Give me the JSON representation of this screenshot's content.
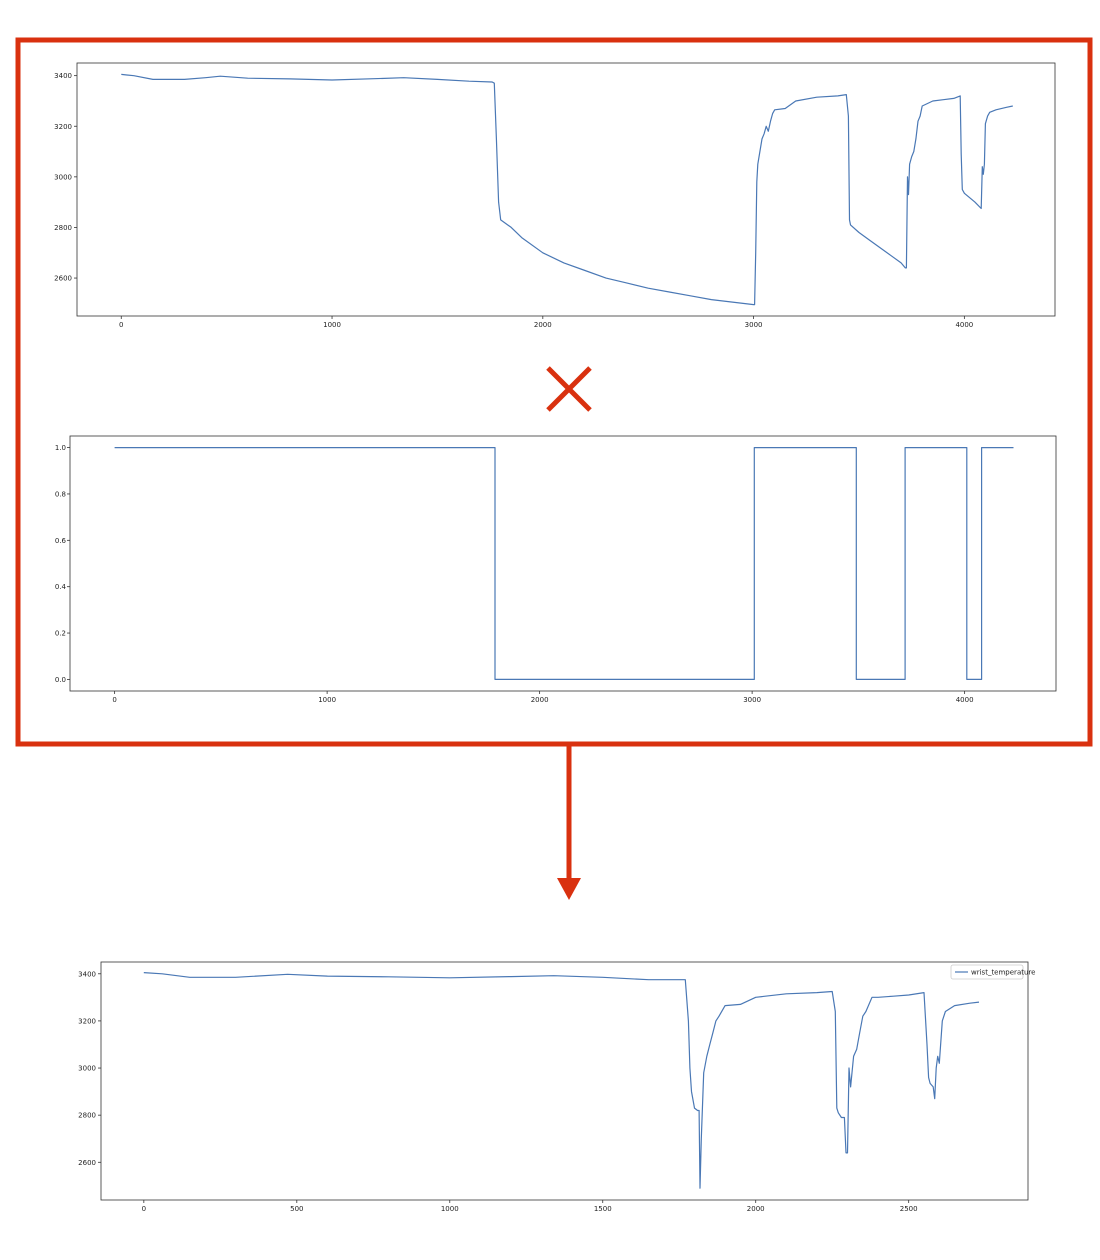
{
  "colors": {
    "series": "#4a78b5",
    "highlight": "#d9310f",
    "axes": "#333333",
    "background": "#ffffff"
  },
  "annotations": {
    "multiply_symbol": "multiply-x-icon",
    "flow_arrow": "down-arrow-icon"
  },
  "chart_data": [
    {
      "type": "line",
      "title": "",
      "xlabel": "",
      "ylabel": "",
      "xlim": [
        -210,
        4430
      ],
      "ylim": [
        2450,
        3450
      ],
      "xticks": [
        0,
        1000,
        2000,
        3000,
        4000
      ],
      "yticks": [
        2600,
        2800,
        3000,
        3200,
        3400
      ],
      "grid": false,
      "legend": "none",
      "series": [
        {
          "x": [
            0,
            60,
            150,
            300,
            400,
            470,
            600,
            800,
            1000,
            1200,
            1340,
            1500,
            1650,
            1760,
            1770,
            1780,
            1790,
            1800,
            1850,
            1900,
            2000,
            2100,
            2200,
            2300,
            2400,
            2500,
            2600,
            2700,
            2800,
            2900,
            3000,
            3005,
            3010,
            3015,
            3020,
            3030,
            3040,
            3050,
            3060,
            3070,
            3080,
            3090,
            3100,
            3150,
            3200,
            3300,
            3400,
            3440,
            3450,
            3455,
            3460,
            3500,
            3550,
            3600,
            3650,
            3700,
            3720,
            3725,
            3730,
            3735,
            3740,
            3750,
            3760,
            3770,
            3780,
            3790,
            3800,
            3850,
            3900,
            3950,
            3980,
            3985,
            3990,
            4000,
            4050,
            4080,
            4085,
            4090,
            4095,
            4100,
            4110,
            4120,
            4150,
            4200,
            4230
          ],
          "y": [
            3405,
            3400,
            3385,
            3385,
            3392,
            3398,
            3390,
            3387,
            3383,
            3388,
            3392,
            3385,
            3378,
            3375,
            3370,
            3150,
            2900,
            2830,
            2800,
            2760,
            2700,
            2660,
            2630,
            2600,
            2580,
            2560,
            2545,
            2530,
            2515,
            2505,
            2495,
            2495,
            2700,
            2980,
            3050,
            3100,
            3150,
            3170,
            3200,
            3180,
            3220,
            3250,
            3265,
            3270,
            3300,
            3315,
            3320,
            3325,
            3240,
            2830,
            2810,
            2780,
            2750,
            2720,
            2690,
            2660,
            2640,
            2640,
            3000,
            2930,
            3050,
            3080,
            3100,
            3150,
            3220,
            3240,
            3280,
            3300,
            3305,
            3310,
            3320,
            3090,
            2950,
            2935,
            2900,
            2875,
            3040,
            3010,
            3050,
            3210,
            3240,
            3255,
            3265,
            3275,
            3280
          ],
          "color": "#4a78b5"
        }
      ]
    },
    {
      "type": "line",
      "title": "",
      "xlabel": "",
      "ylabel": "",
      "xlim": [
        -210,
        4430
      ],
      "ylim": [
        -0.05,
        1.05
      ],
      "xticks": [
        0,
        1000,
        2000,
        3000,
        4000
      ],
      "yticks": [
        0.0,
        0.2,
        0.4,
        0.6,
        0.8,
        1.0
      ],
      "ytick_labels": [
        "0.0",
        "0.2",
        "0.4",
        "0.6",
        "0.8",
        "1.0"
      ],
      "grid": false,
      "legend": "none",
      "series": [
        {
          "x": [
            0,
            1790,
            1790,
            3010,
            3010,
            3490,
            3490,
            3720,
            3720,
            4010,
            4010,
            4080,
            4080,
            4230
          ],
          "y": [
            1,
            1,
            0,
            0,
            1,
            1,
            0,
            0,
            1,
            1,
            0,
            0,
            1,
            1
          ],
          "color": "#4a78b5"
        }
      ]
    },
    {
      "type": "line",
      "title": "",
      "xlabel": "",
      "ylabel": "",
      "xlim": [
        -140,
        2890
      ],
      "ylim": [
        2440,
        3450
      ],
      "xticks": [
        0,
        500,
        1000,
        1500,
        2000,
        2500
      ],
      "yticks": [
        2600,
        2800,
        3000,
        3200,
        3400
      ],
      "grid": false,
      "legend": "top-right",
      "series": [
        {
          "name": "wrist_temperature",
          "x": [
            0,
            60,
            150,
            300,
            470,
            600,
            800,
            1000,
            1200,
            1340,
            1500,
            1650,
            1770,
            1780,
            1785,
            1790,
            1800,
            1810,
            1815,
            1818,
            1822,
            1830,
            1840,
            1850,
            1860,
            1870,
            1880,
            1900,
            1950,
            2000,
            2100,
            2200,
            2250,
            2260,
            2265,
            2270,
            2280,
            2290,
            2295,
            2300,
            2305,
            2310,
            2320,
            2330,
            2340,
            2350,
            2360,
            2380,
            2400,
            2450,
            2500,
            2550,
            2560,
            2565,
            2570,
            2580,
            2585,
            2590,
            2595,
            2600,
            2610,
            2620,
            2650,
            2700,
            2730
          ],
          "y": [
            3405,
            3400,
            3385,
            3385,
            3398,
            3390,
            3387,
            3383,
            3388,
            3392,
            3385,
            3375,
            3375,
            3200,
            3000,
            2900,
            2830,
            2820,
            2820,
            2490,
            2700,
            2980,
            3050,
            3100,
            3150,
            3200,
            3220,
            3265,
            3270,
            3300,
            3315,
            3320,
            3325,
            3240,
            2830,
            2810,
            2790,
            2790,
            2640,
            2640,
            3000,
            2920,
            3050,
            3080,
            3150,
            3220,
            3240,
            3300,
            3300,
            3305,
            3310,
            3320,
            3100,
            2960,
            2935,
            2920,
            2870,
            3000,
            3050,
            3020,
            3200,
            3240,
            3265,
            3275,
            3280
          ],
          "color": "#4a78b5"
        }
      ]
    }
  ]
}
